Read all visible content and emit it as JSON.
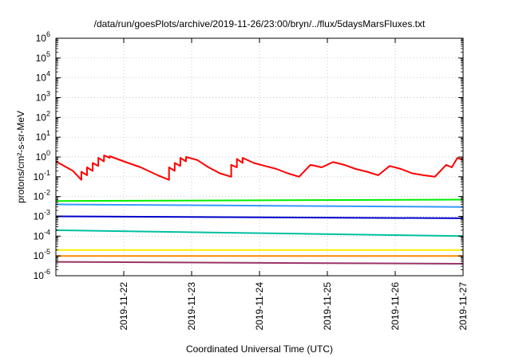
{
  "chart_data": {
    "type": "line",
    "title": "/data/run/goesPlots/archive/2019-11-26/23:00/bryn/../flux/5daysMarsFluxes.txt",
    "xlabel": "Coordinated Universal Time (UTC)",
    "ylabel": "protons/cm²-s-sr-MeV",
    "scale_y": "log",
    "ylim": [
      1e-06,
      1000000.0
    ],
    "xlim": [
      "2019-11-21T00:00",
      "2019-11-27T00:00"
    ],
    "x_ticks": [
      "2019-11-22",
      "2019-11-23",
      "2019-11-24",
      "2019-11-25",
      "2019-11-26",
      "2019-11-27"
    ],
    "y_ticks": [
      {
        "base": "10",
        "exp": "-6",
        "value": 1e-06
      },
      {
        "base": "10",
        "exp": "-5",
        "value": 1e-05
      },
      {
        "base": "10",
        "exp": "-4",
        "value": 0.0001
      },
      {
        "base": "10",
        "exp": "-3",
        "value": 0.001
      },
      {
        "base": "10",
        "exp": "-2",
        "value": 0.01
      },
      {
        "base": "10",
        "exp": "-1",
        "value": 0.1
      },
      {
        "base": "10",
        "exp": "0",
        "value": 1
      },
      {
        "base": "10",
        "exp": "1",
        "value": 10
      },
      {
        "base": "10",
        "exp": "2",
        "value": 100
      },
      {
        "base": "10",
        "exp": "3",
        "value": 1000
      },
      {
        "base": "10",
        "exp": "4",
        "value": 10000
      },
      {
        "base": "10",
        "exp": "5",
        "value": 100000
      },
      {
        "base": "10",
        "exp": "6",
        "value": 1000000
      }
    ],
    "grid": true,
    "legend": "none",
    "series": [
      {
        "color": "#ff0000",
        "x": [
          "2019-11-21T00:00",
          "2019-11-21T06:00",
          "2019-11-21T09:00",
          "2019-11-21T09:01",
          "2019-11-21T11:00",
          "2019-11-21T11:01",
          "2019-11-21T13:00",
          "2019-11-21T13:01",
          "2019-11-21T15:00",
          "2019-11-21T15:01",
          "2019-11-21T17:00",
          "2019-11-21T17:01",
          "2019-11-21T19:00",
          "2019-11-21T19:01",
          "2019-11-22T00:00",
          "2019-11-22T06:00",
          "2019-11-22T12:00",
          "2019-11-22T16:00",
          "2019-11-22T16:01",
          "2019-11-22T18:00",
          "2019-11-22T18:01",
          "2019-11-22T20:00",
          "2019-11-22T20:01",
          "2019-11-22T22:00",
          "2019-11-22T22:01",
          "2019-11-23T02:00",
          "2019-11-23T06:00",
          "2019-11-23T10:00",
          "2019-11-23T14:00",
          "2019-11-23T14:01",
          "2019-11-23T16:00",
          "2019-11-23T16:01",
          "2019-11-23T18:00",
          "2019-11-23T18:01",
          "2019-11-23T22:00",
          "2019-11-24T02:00",
          "2019-11-24T06:00",
          "2019-11-24T10:00",
          "2019-11-24T14:00",
          "2019-11-24T18:00",
          "2019-11-24T22:00",
          "2019-11-25T02:00",
          "2019-11-25T06:00",
          "2019-11-25T10:00",
          "2019-11-25T14:00",
          "2019-11-25T18:00",
          "2019-11-25T22:00",
          "2019-11-26T02:00",
          "2019-11-26T06:00",
          "2019-11-26T10:00",
          "2019-11-26T14:00",
          "2019-11-26T18:00",
          "2019-11-26T20:00",
          "2019-11-26T22:00",
          "2019-11-27T00:00"
        ],
        "y": [
          0.6,
          0.2,
          0.07,
          0.18,
          0.12,
          0.3,
          0.2,
          0.5,
          0.35,
          0.9,
          0.6,
          1.2,
          0.9,
          1.1,
          0.6,
          0.3,
          0.12,
          0.07,
          0.3,
          0.2,
          0.5,
          0.35,
          0.9,
          0.6,
          1.0,
          0.7,
          0.3,
          0.15,
          0.1,
          0.4,
          0.3,
          0.8,
          0.5,
          0.9,
          0.5,
          0.35,
          0.25,
          0.15,
          0.1,
          0.4,
          0.3,
          0.55,
          0.4,
          0.25,
          0.18,
          0.12,
          0.35,
          0.25,
          0.15,
          0.12,
          0.1,
          0.4,
          0.3,
          0.9,
          0.7
        ]
      },
      {
        "color": "#00ee00",
        "x": [
          "2019-11-21T00:00",
          "2019-11-27T00:00"
        ],
        "y": [
          0.006,
          0.007
        ]
      },
      {
        "color": "#3399ff",
        "x": [
          "2019-11-21T00:00",
          "2019-11-27T00:00"
        ],
        "y": [
          0.004,
          0.003
        ]
      },
      {
        "color": "#0000cc",
        "x": [
          "2019-11-21T00:00",
          "2019-11-27T00:00"
        ],
        "y": [
          0.001,
          0.0008
        ]
      },
      {
        "color": "#00c0a0",
        "x": [
          "2019-11-21T00:00",
          "2019-11-27T00:00"
        ],
        "y": [
          0.0002,
          0.0001
        ]
      },
      {
        "color": "#ffee00",
        "x": [
          "2019-11-21T00:00",
          "2019-11-27T00:00"
        ],
        "y": [
          2e-05,
          2e-05
        ]
      },
      {
        "color": "#ff8800",
        "x": [
          "2019-11-21T00:00",
          "2019-11-27T00:00"
        ],
        "y": [
          1e-05,
          1e-05
        ]
      },
      {
        "color": "#993366",
        "x": [
          "2019-11-21T00:00",
          "2019-11-27T00:00"
        ],
        "y": [
          5e-06,
          4e-06
        ]
      }
    ]
  }
}
